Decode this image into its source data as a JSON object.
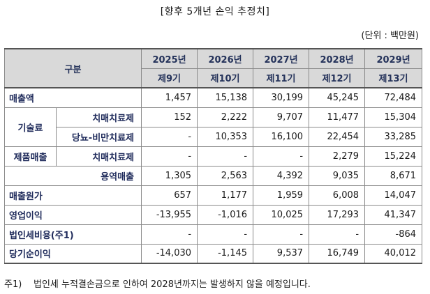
{
  "title": "[향후 5개년 손익 추정치]",
  "unit": "(단위 : 백만원)",
  "header": {
    "corner": "구분",
    "years": [
      "2025년",
      "2026년",
      "2027년",
      "2028년",
      "2029년"
    ],
    "terms": [
      "제9기",
      "제10기",
      "제11기",
      "제12기",
      "제13기"
    ]
  },
  "rows": {
    "revenue": {
      "label": "매출액",
      "values": [
        "1,457",
        "15,138",
        "30,199",
        "45,245",
        "72,484"
      ]
    },
    "tech_fee_group": "기술료",
    "tech_dental": {
      "label": "치매치료제",
      "values": [
        "152",
        "2,222",
        "9,707",
        "11,477",
        "15,304"
      ]
    },
    "tech_diabetes": {
      "label": "당뇨-비만치료제",
      "values": [
        "-",
        "10,353",
        "16,100",
        "22,454",
        "33,285"
      ]
    },
    "product_group": "제품매출",
    "product_dental": {
      "label": "치매치료제",
      "values": [
        "-",
        "-",
        "-",
        "2,279",
        "15,224"
      ]
    },
    "service": {
      "label": "용역매출",
      "values": [
        "1,305",
        "2,563",
        "4,392",
        "9,035",
        "8,671"
      ]
    },
    "cogs": {
      "label": "매출원가",
      "values": [
        "657",
        "1,177",
        "1,959",
        "6,008",
        "14,047"
      ]
    },
    "operating": {
      "label": "영업이익",
      "values": [
        "-13,955",
        "-1,016",
        "10,025",
        "17,293",
        "41,347"
      ]
    },
    "tax": {
      "label": "법인세비용(주1)",
      "values": [
        "-",
        "-",
        "-",
        "-",
        "-864"
      ]
    },
    "net": {
      "label": "당기순이익",
      "values": [
        "-14,030",
        "-1,145",
        "9,537",
        "16,749",
        "40,012"
      ]
    }
  },
  "footnote": {
    "mark": "주1)",
    "text": "법인세 누적결손금으로 인하여 2028년까지는 발생하지 않을 예정입니다."
  }
}
